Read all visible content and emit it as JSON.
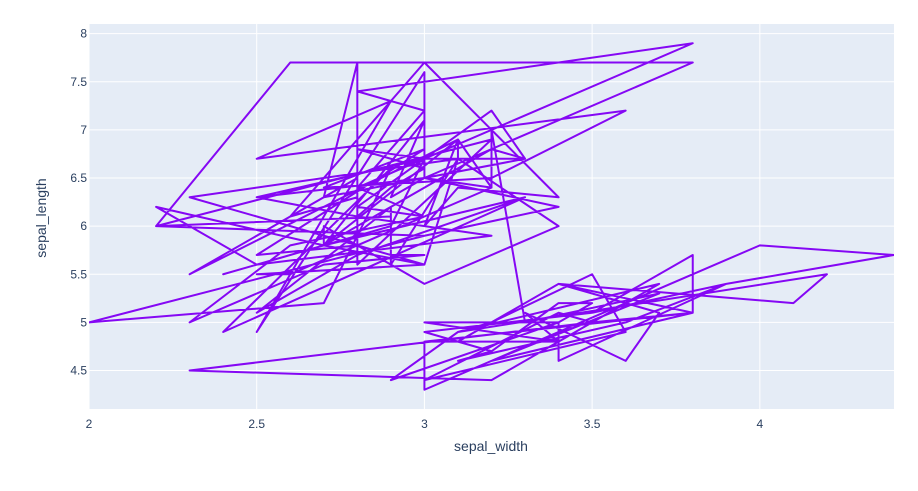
{
  "colors": {
    "plot_background": "#e5ecf6",
    "grid": "#ffffff",
    "line": "#8507f4",
    "text": "#2a3f5f"
  },
  "chart_data": {
    "type": "line",
    "xlabel": "sepal_width",
    "ylabel": "sepal_length",
    "xlim": [
      2,
      4.4
    ],
    "ylim": [
      4.1,
      8.1
    ],
    "grid": true,
    "x_ticks": [
      2,
      2.5,
      3,
      3.5,
      4
    ],
    "x_tick_labels": [
      "2",
      "2.5",
      "3",
      "3.5",
      "4"
    ],
    "y_ticks": [
      4.5,
      5,
      5.5,
      6,
      6.5,
      7,
      7.5,
      8
    ],
    "y_tick_labels": [
      "4.5",
      "5",
      "5.5",
      "6",
      "6.5",
      "7",
      "7.5",
      "8"
    ],
    "series": [
      {
        "x": [
          3.5,
          3.0,
          3.2,
          3.1,
          3.6,
          3.9,
          3.4,
          3.4,
          2.9,
          3.1,
          3.7,
          3.4,
          3.0,
          3.0,
          4.0,
          4.4,
          3.9,
          3.5,
          3.8,
          3.8,
          3.4,
          3.7,
          3.6,
          3.3,
          3.4,
          3.0,
          3.4,
          3.5,
          3.4,
          3.2,
          3.1,
          3.4,
          4.1,
          4.2,
          3.1,
          3.2,
          3.5,
          3.6,
          3.0,
          3.4,
          3.5,
          2.3,
          3.2,
          3.5,
          3.8,
          3.0,
          3.8,
          3.2,
          3.7,
          3.3,
          3.2,
          3.2,
          3.1,
          2.3,
          2.8,
          2.8,
          3.3,
          2.4,
          2.9,
          2.7,
          2.0,
          3.0,
          2.2,
          2.9,
          2.9,
          3.1,
          3.0,
          2.7,
          2.2,
          2.5,
          3.2,
          2.8,
          2.5,
          2.8,
          2.9,
          3.0,
          2.8,
          3.0,
          2.9,
          2.6,
          2.4,
          2.4,
          2.7,
          2.7,
          3.0,
          3.4,
          3.1,
          2.3,
          3.0,
          2.5,
          2.6,
          3.0,
          2.6,
          2.3,
          2.7,
          3.0,
          2.9,
          2.9,
          2.5,
          2.8,
          3.3,
          2.7,
          3.0,
          2.9,
          3.0,
          3.0,
          2.5,
          2.9,
          2.5,
          3.6,
          3.2,
          2.7,
          3.0,
          2.5,
          2.8,
          3.2,
          3.0,
          3.8,
          2.6,
          2.2,
          3.2,
          2.8,
          2.8,
          2.7,
          3.3,
          3.2,
          2.8,
          3.0,
          2.8,
          3.0,
          2.8,
          3.8,
          2.8,
          2.8,
          2.6,
          3.0,
          3.4,
          3.1,
          3.0,
          3.1,
          3.1,
          3.1,
          2.7,
          3.2,
          3.3,
          3.0,
          2.5,
          3.0,
          3.4,
          3.0
        ],
        "y": [
          5.1,
          4.9,
          4.7,
          4.6,
          5.0,
          5.4,
          4.6,
          5.0,
          4.4,
          4.9,
          5.4,
          4.8,
          4.8,
          4.3,
          5.8,
          5.7,
          5.4,
          5.1,
          5.7,
          5.1,
          5.4,
          5.1,
          4.6,
          5.1,
          4.8,
          5.0,
          5.0,
          5.2,
          5.2,
          4.7,
          4.8,
          5.4,
          5.2,
          5.5,
          4.9,
          5.0,
          5.5,
          4.9,
          4.4,
          5.1,
          5.0,
          4.5,
          4.4,
          5.0,
          5.1,
          4.8,
          5.1,
          4.6,
          5.3,
          5.0,
          7.0,
          6.4,
          6.9,
          5.5,
          6.5,
          5.7,
          6.3,
          4.9,
          6.6,
          5.2,
          5.0,
          5.9,
          6.0,
          6.1,
          5.6,
          6.7,
          5.6,
          5.8,
          6.2,
          5.6,
          5.9,
          6.1,
          6.3,
          6.1,
          6.4,
          6.6,
          6.8,
          6.7,
          6.0,
          5.7,
          5.5,
          5.5,
          5.8,
          6.0,
          5.4,
          6.0,
          6.7,
          6.3,
          5.6,
          5.5,
          5.5,
          6.1,
          5.8,
          5.0,
          5.6,
          5.7,
          5.7,
          6.2,
          5.1,
          5.7,
          6.3,
          5.8,
          7.1,
          6.3,
          6.5,
          7.6,
          4.9,
          7.3,
          6.7,
          7.2,
          6.5,
          6.4,
          6.8,
          5.7,
          5.8,
          6.4,
          6.5,
          7.7,
          7.7,
          6.0,
          6.9,
          5.6,
          7.7,
          6.3,
          6.7,
          7.2,
          6.2,
          6.1,
          6.4,
          7.2,
          7.4,
          7.9,
          6.4,
          6.3,
          6.1,
          7.7,
          6.3,
          6.4,
          6.0,
          6.9,
          6.7,
          6.9,
          5.8,
          6.8,
          6.7,
          6.7,
          6.3,
          6.5,
          6.2,
          5.9
        ]
      }
    ]
  }
}
